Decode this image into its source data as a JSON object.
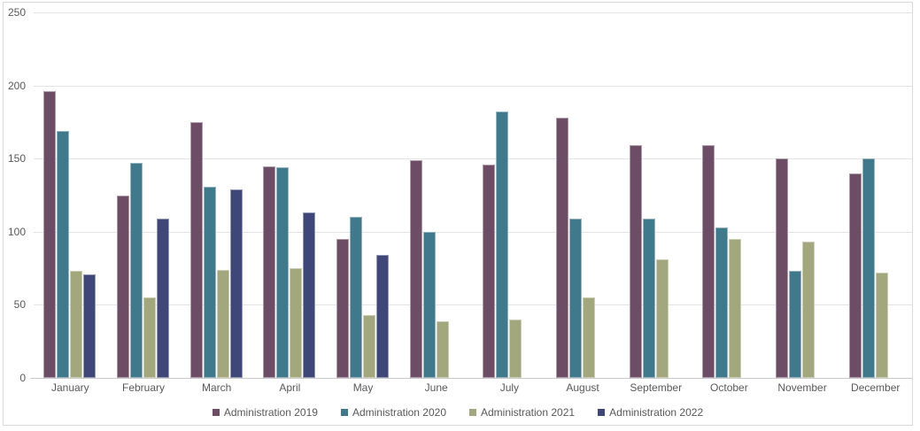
{
  "chart_data": {
    "type": "bar",
    "title": "",
    "xlabel": "",
    "ylabel": "",
    "ylim": [
      0,
      250
    ],
    "yticks": [
      0,
      50,
      100,
      150,
      200,
      250
    ],
    "grid": true,
    "legend_position": "bottom",
    "categories": [
      "January",
      "February",
      "March",
      "April",
      "May",
      "June",
      "July",
      "August",
      "September",
      "October",
      "November",
      "December"
    ],
    "series": [
      {
        "name": "Administration 2019",
        "color": "#6D4C65",
        "values": [
          196,
          125,
          175,
          145,
          95,
          149,
          146,
          178,
          159,
          159,
          150,
          140
        ]
      },
      {
        "name": "Administration 2020",
        "color": "#41798C",
        "values": [
          169,
          147,
          131,
          144,
          110,
          100,
          182,
          109,
          109,
          103,
          73,
          150
        ]
      },
      {
        "name": "Administration 2021",
        "color": "#A2A77E",
        "values": [
          73,
          55,
          74,
          75,
          43,
          39,
          40,
          55,
          81,
          95,
          93,
          72
        ]
      },
      {
        "name": "Administration 2022",
        "color": "#3E4777",
        "values": [
          71,
          109,
          129,
          113,
          84,
          null,
          null,
          null,
          null,
          null,
          null,
          null
        ]
      }
    ],
    "colors": {
      "gridline": "#e3e3e3",
      "axis_line": "#c9c9c9",
      "tick_text": "#595959",
      "background": "#ffffff",
      "frame_border": "#d9d9d9"
    }
  }
}
